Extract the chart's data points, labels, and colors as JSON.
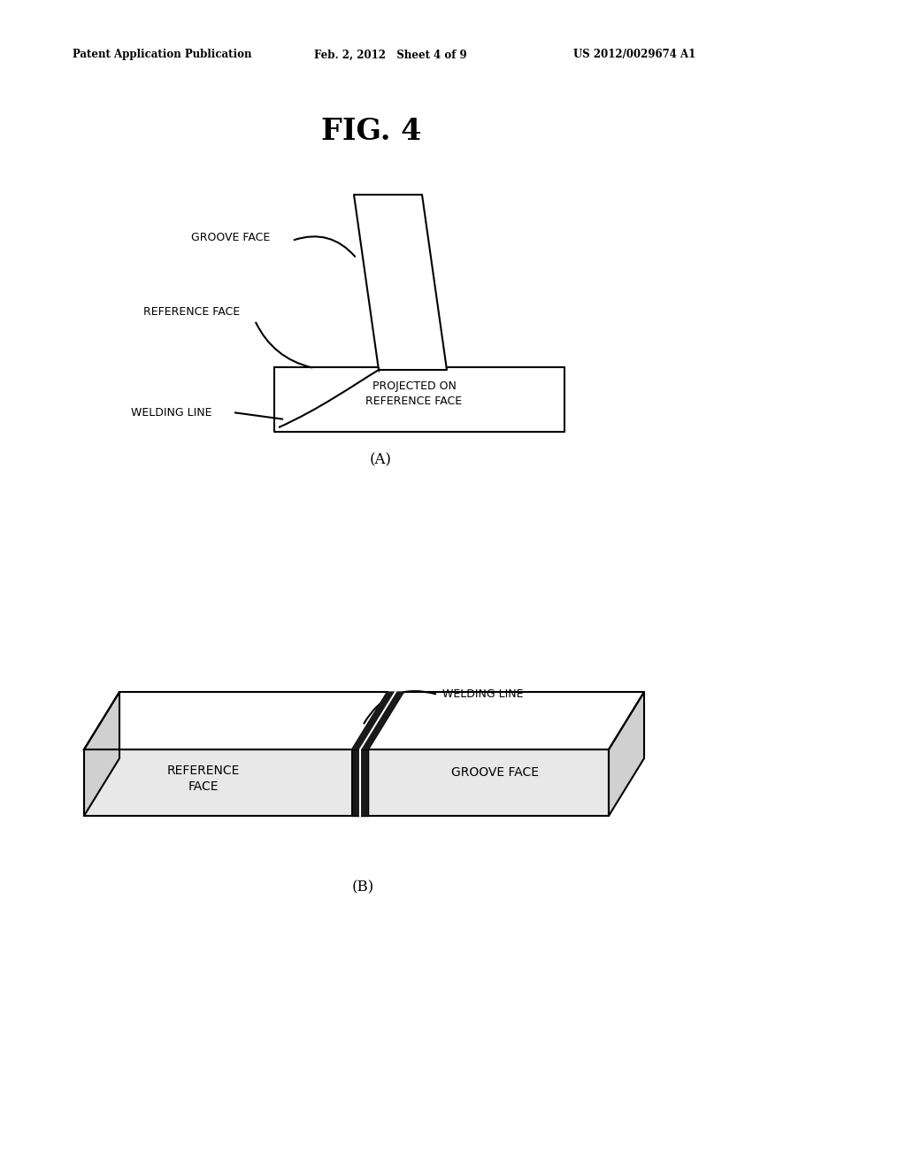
{
  "background_color": "#ffffff",
  "header_left": "Patent Application Publication",
  "header_mid": "Feb. 2, 2012   Sheet 4 of 9",
  "header_right": "US 2012/0029674 A1",
  "fig_title": "FIG. 4",
  "label_A": "(A)",
  "label_B": "(B)",
  "line_color": "#000000",
  "fill_white": "#ffffff",
  "fill_light": "#f5f5f5",
  "fill_mid": "#e8e8e8",
  "fill_dark": "#d0d0d0",
  "seam_color": "#1a1a1a",
  "seam_white": "#ffffff"
}
